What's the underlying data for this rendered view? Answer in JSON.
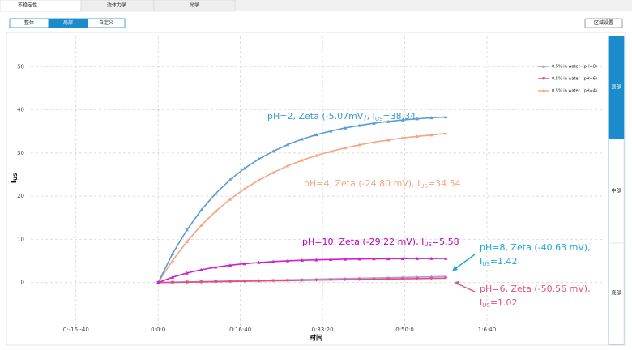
{
  "tabs": [
    "不稳定性",
    "流体力学",
    "光学"
  ],
  "view_buttons": [
    "整体",
    "局部",
    "自定义"
  ],
  "region_button": "区域设置",
  "side_panel": [
    "顶部",
    "中部",
    "底部"
  ],
  "chart_data": {
    "type": "line",
    "xlabel": "时间",
    "ylabel": {
      "text": "I",
      "sub": "US"
    },
    "x": [
      0,
      175,
      350,
      525,
      700,
      875,
      1050,
      1225,
      1400,
      1575,
      1750,
      1925,
      2100,
      2275,
      2450,
      2625,
      2800,
      2975,
      3150,
      3325,
      3500
    ],
    "series": [
      {
        "name": "0.5% in water（pH=8)",
        "color": "#b49be8",
        "marker": "up",
        "values": [
          0,
          0.07,
          0.14,
          0.21,
          0.28,
          0.36,
          0.43,
          0.5,
          0.57,
          0.64,
          0.71,
          0.78,
          0.85,
          0.92,
          0.99,
          1.07,
          1.14,
          1.21,
          1.28,
          1.35,
          1.42
        ]
      },
      {
        "name": "0.5% in water（pH=6)",
        "color": "#e0507a",
        "marker": "down",
        "values": [
          0,
          0.05,
          0.1,
          0.15,
          0.2,
          0.26,
          0.31,
          0.36,
          0.41,
          0.46,
          0.51,
          0.56,
          0.61,
          0.66,
          0.71,
          0.77,
          0.82,
          0.87,
          0.92,
          0.97,
          1.02
        ]
      },
      {
        "name": "0.5% in water（pH=4)",
        "color": "#f4a582",
        "marker": "up",
        "values": [
          0,
          5.1,
          9.48,
          13.28,
          16.51,
          19.29,
          21.68,
          23.71,
          25.48,
          27.01,
          28.31,
          29.43,
          30.37,
          31.2,
          31.89,
          32.51,
          33.01,
          33.49,
          33.85,
          34.17,
          34.54
        ]
      },
      {
        "color": "#5b9bd5",
        "marker": "up",
        "values": [
          0,
          6.68,
          12.22,
          16.82,
          20.63,
          23.82,
          26.45,
          28.61,
          30.42,
          31.95,
          33.21,
          34.23,
          35.09,
          35.8,
          36.39,
          36.9,
          37.3,
          37.65,
          37.92,
          38.16,
          38.34
        ]
      },
      {
        "color": "#d020d0",
        "marker": "up",
        "values": [
          0,
          1.24,
          2.21,
          2.97,
          3.55,
          4.01,
          4.37,
          4.64,
          4.86,
          5.03,
          5.16,
          5.26,
          5.34,
          5.4,
          5.45,
          5.49,
          5.52,
          5.54,
          5.56,
          5.57,
          5.58
        ]
      }
    ],
    "xlim": [
      -1550,
      5420
    ],
    "ylim": [
      -10,
      57
    ],
    "xticks": [
      {
        "value": -1000,
        "label": "0:-16:-40"
      },
      {
        "value": 0,
        "label": "0:0:0"
      },
      {
        "value": 1000,
        "label": "0:16:40"
      },
      {
        "value": 2000,
        "label": "0:33:20"
      },
      {
        "value": 3000,
        "label": "0:50:0"
      },
      {
        "value": 4000,
        "label": "1:6:40"
      }
    ],
    "yticks": [
      0,
      10,
      20,
      30,
      40,
      50
    ],
    "grid": true,
    "annotations": [
      {
        "color": "#3a9ad9",
        "lines": [
          {
            "text": "pH=2, Zeta (-5.07mV), I",
            "sub": "US",
            "tail": "=38.34"
          }
        ]
      },
      {
        "color": "#f4a582",
        "lines": [
          {
            "text": "pH=4, Zeta (-24.80 mV), I",
            "sub": "US",
            "tail": "=34.54"
          }
        ]
      },
      {
        "color": "#c000c0",
        "lines": [
          {
            "text": "pH=10, Zeta (-29.22 mV), I",
            "sub": "US",
            "tail": "=5.58"
          }
        ]
      },
      {
        "color": "#1ba8d8",
        "lines": [
          {
            "text": "pH=8, Zeta (-40.63 mV),"
          },
          {
            "text": "I",
            "sub": "US",
            "tail": "=1.42"
          }
        ]
      },
      {
        "color": "#e0508a",
        "lines": [
          {
            "text": "pH=6, Zeta (-50.56 mV),"
          },
          {
            "text": "I",
            "sub": "US",
            "tail": "=1.02"
          }
        ]
      }
    ]
  }
}
